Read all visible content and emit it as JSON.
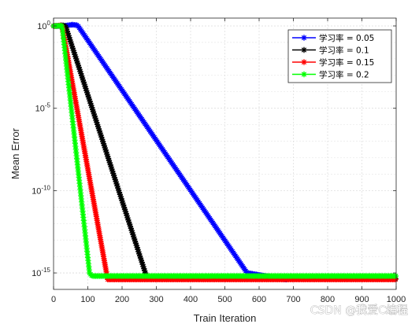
{
  "chart_data": {
    "type": "line",
    "title": "",
    "xlabel": "Train Iteration",
    "ylabel": "Mean Error",
    "xlim": [
      0,
      1000
    ],
    "ylim": [
      1e-16,
      3
    ],
    "yscale": "log",
    "x_ticks": [
      0,
      100,
      200,
      300,
      400,
      500,
      600,
      700,
      800,
      900,
      1000
    ],
    "y_ticks": [
      {
        "value": 1,
        "base": "10",
        "exp": "0"
      },
      {
        "value": 1e-05,
        "base": "10",
        "exp": "-5"
      },
      {
        "value": 1e-10,
        "base": "10",
        "exp": "-10"
      },
      {
        "value": 1e-15,
        "base": "10",
        "exp": "-15"
      }
    ],
    "grid": true,
    "legend_position": "top-right",
    "series": [
      {
        "name": "学习率 = 0.05",
        "color": "#0000ff",
        "marker": "asterisk",
        "points": [
          [
            0,
            1
          ],
          [
            30,
            1
          ],
          [
            55,
            1.2
          ],
          [
            70,
            1.1
          ],
          [
            565,
            1e-15
          ],
          [
            680,
            4e-16
          ]
        ]
      },
      {
        "name": "学习率 = 0.1",
        "color": "#000000",
        "marker": "asterisk",
        "points": [
          [
            0,
            1
          ],
          [
            15,
            1
          ],
          [
            25,
            1.1
          ],
          [
            35,
            1
          ],
          [
            268,
            1e-15
          ],
          [
            270,
            4.5e-16
          ],
          [
            1000,
            4.5e-16
          ]
        ]
      },
      {
        "name": "学习率 = 0.15",
        "color": "#ff0000",
        "marker": "asterisk",
        "points": [
          [
            0,
            1
          ],
          [
            10,
            1
          ],
          [
            20,
            1.1
          ],
          [
            25,
            1
          ],
          [
            158,
            4e-16
          ],
          [
            1000,
            4e-16
          ]
        ]
      },
      {
        "name": "学习率 = 0.2",
        "color": "#00ff00",
        "marker": "asterisk",
        "points": [
          [
            0,
            1
          ],
          [
            10,
            1
          ],
          [
            20,
            1.05
          ],
          [
            25,
            1
          ],
          [
            105,
            1e-15
          ],
          [
            112,
            6.5e-16
          ],
          [
            1000,
            6.5e-16
          ]
        ]
      }
    ]
  },
  "watermark": "CSDN @我爱C编程"
}
